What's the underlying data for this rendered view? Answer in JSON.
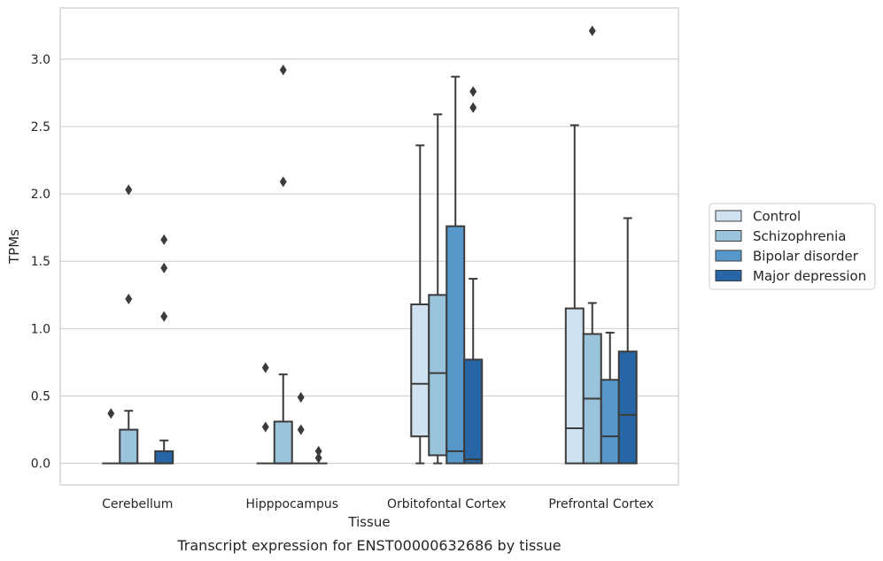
{
  "chart_data": {
    "type": "boxplot",
    "title": "",
    "caption": "Transcript expression for ENST00000632686 by tissue",
    "xlabel": "Tissue",
    "ylabel": "TPMs",
    "ylim": [
      -0.16,
      3.38
    ],
    "yticks": [
      "0.0",
      "0.5",
      "1.0",
      "1.5",
      "2.0",
      "2.5",
      "3.0"
    ],
    "grid": "horizontal",
    "legend_position": "right",
    "categories": [
      "Cerebellum",
      "Hipppocampus",
      "Orbitofontal Cortex",
      "Prefrontal Cortex"
    ],
    "series": [
      {
        "name": "Control",
        "color": "#d0e1f0",
        "boxes": [
          {
            "min": 0,
            "q1": 0,
            "median": 0,
            "q3": 0,
            "max": 0,
            "outliers": [
              0.37
            ]
          },
          {
            "min": 0,
            "q1": 0,
            "median": 0,
            "q3": 0,
            "max": 0,
            "outliers": [
              0.71,
              0.27
            ]
          },
          {
            "min": 0,
            "q1": 0.2,
            "median": 0.59,
            "q3": 1.18,
            "max": 2.36,
            "outliers": []
          },
          {
            "min": 0,
            "q1": 0,
            "median": 0.26,
            "q3": 1.15,
            "max": 2.51,
            "outliers": []
          }
        ]
      },
      {
        "name": "Schizophrenia",
        "color": "#9ac3dc",
        "boxes": [
          {
            "min": 0,
            "q1": 0,
            "median": 0,
            "q3": 0.25,
            "max": 0.39,
            "outliers": [
              2.03,
              1.22
            ]
          },
          {
            "min": 0,
            "q1": 0,
            "median": 0,
            "q3": 0.31,
            "max": 0.66,
            "outliers": [
              2.92,
              2.09
            ]
          },
          {
            "min": 0,
            "q1": 0.06,
            "median": 0.67,
            "q3": 1.25,
            "max": 2.59,
            "outliers": []
          },
          {
            "min": 0,
            "q1": 0,
            "median": 0.48,
            "q3": 0.96,
            "max": 1.19,
            "outliers": [
              3.21
            ]
          }
        ]
      },
      {
        "name": "Bipolar disorder",
        "color": "#5598c9",
        "boxes": [
          {
            "min": 0,
            "q1": 0,
            "median": 0,
            "q3": 0,
            "max": 0,
            "outliers": []
          },
          {
            "min": 0,
            "q1": 0,
            "median": 0,
            "q3": 0,
            "max": 0,
            "outliers": [
              0.49,
              0.25
            ]
          },
          {
            "min": 0,
            "q1": 0,
            "median": 0.09,
            "q3": 1.76,
            "max": 2.87,
            "outliers": []
          },
          {
            "min": 0,
            "q1": 0,
            "median": 0.2,
            "q3": 0.62,
            "max": 0.97,
            "outliers": []
          }
        ]
      },
      {
        "name": "Major depression",
        "color": "#2666a6",
        "boxes": [
          {
            "min": 0,
            "q1": 0,
            "median": 0,
            "q3": 0.09,
            "max": 0.17,
            "outliers": [
              1.66,
              1.45,
              1.09
            ]
          },
          {
            "min": 0,
            "q1": 0,
            "median": 0,
            "q3": 0,
            "max": 0,
            "outliers": [
              0.09,
              0.04
            ]
          },
          {
            "min": 0,
            "q1": 0,
            "median": 0.03,
            "q3": 0.77,
            "max": 1.37,
            "outliers": [
              2.76,
              2.64
            ]
          },
          {
            "min": 0,
            "q1": 0,
            "median": 0.36,
            "q3": 0.83,
            "max": 1.82,
            "outliers": []
          }
        ]
      }
    ]
  }
}
